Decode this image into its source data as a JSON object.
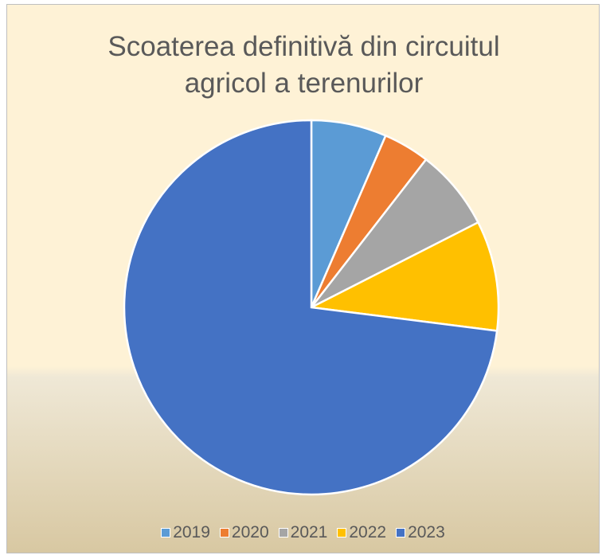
{
  "chart_data": {
    "type": "pie",
    "title": "Scoaterea definitivă din circuitul agricol a terenurilor",
    "categories": [
      "2019",
      "2020",
      "2021",
      "2022",
      "2023"
    ],
    "values": [
      6.5,
      4,
      7,
      9.5,
      73
    ],
    "colors": [
      "#5b9bd5",
      "#ed7d31",
      "#a5a5a5",
      "#ffc000",
      "#4472c4"
    ],
    "legend": "bottom"
  }
}
